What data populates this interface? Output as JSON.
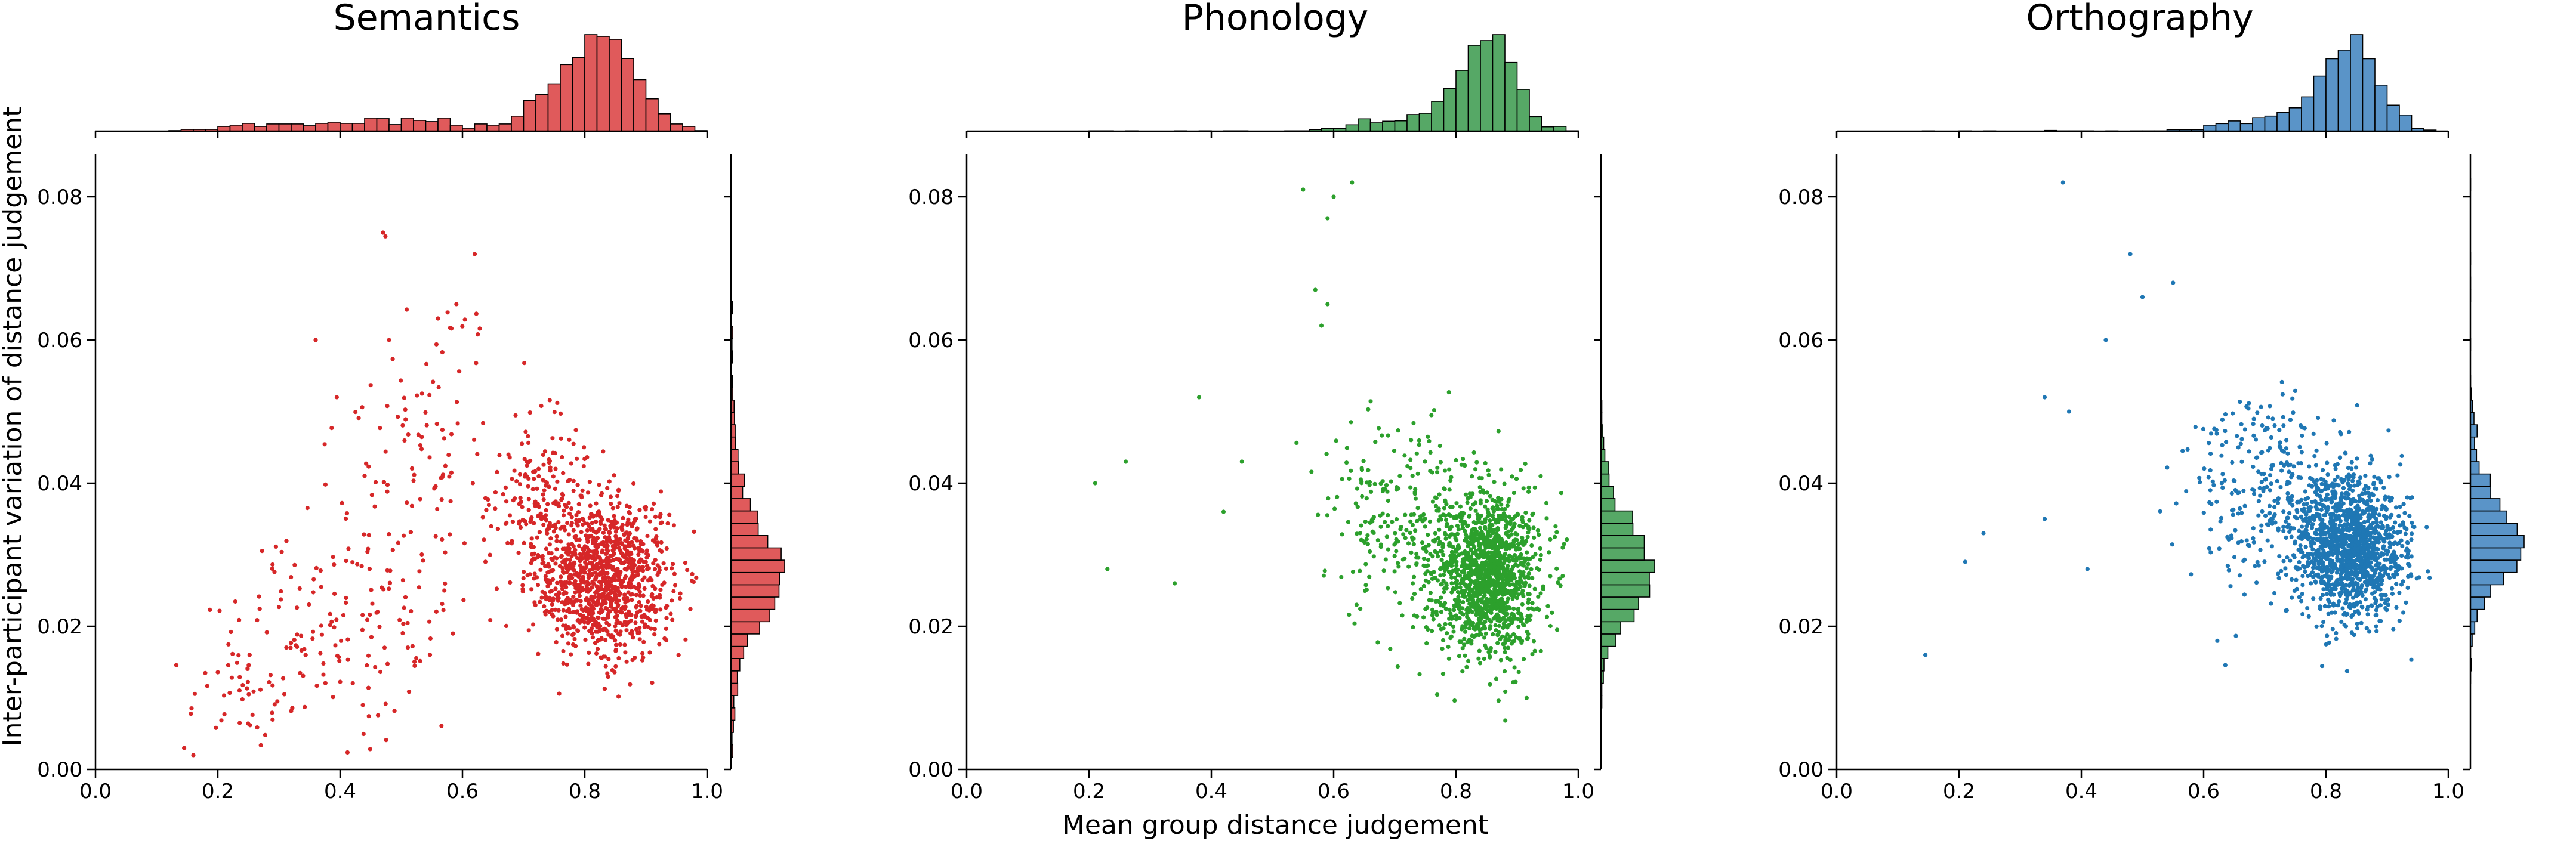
{
  "figure": {
    "ylabel": "Inter-participant variation of distance judgement",
    "xlabel": "Mean group distance judgement"
  },
  "chart_data": [
    {
      "type": "scatter",
      "title": "Semantics",
      "color": "#d62728",
      "hist_fill": "#e05a5b",
      "xlim": [
        0.0,
        1.0
      ],
      "ylim": [
        0.0,
        0.086
      ],
      "xticks": [
        0.0,
        0.2,
        0.4,
        0.6,
        0.8,
        1.0
      ],
      "yticks": [
        0.0,
        0.02,
        0.04,
        0.06,
        0.08
      ],
      "xtick_labels": [
        "0.0",
        "0.2",
        "0.4",
        "0.6",
        "0.8",
        "1.0"
      ],
      "ytick_labels": [
        "0.00",
        "0.02",
        "0.04",
        "0.06",
        "0.08"
      ],
      "marginal_top": true,
      "marginal_right": true,
      "clusters": [
        {
          "cx": 0.83,
          "cy": 0.027,
          "sx": 0.055,
          "sy": 0.0055,
          "n": 1100
        },
        {
          "cx": 0.73,
          "cy": 0.038,
          "sx": 0.04,
          "sy": 0.006,
          "n": 150
        },
        {
          "cx": 0.55,
          "cy": 0.045,
          "sx": 0.07,
          "sy": 0.009,
          "n": 110
        },
        {
          "cx": 0.4,
          "cy": 0.02,
          "sx": 0.1,
          "sy": 0.007,
          "n": 160
        },
        {
          "cx": 0.25,
          "cy": 0.01,
          "sx": 0.05,
          "sy": 0.004,
          "n": 40
        }
      ],
      "points": [
        [
          0.47,
          0.075
        ],
        [
          0.62,
          0.072
        ],
        [
          0.59,
          0.065
        ],
        [
          0.56,
          0.063
        ],
        [
          0.145,
          0.003
        ],
        [
          0.16,
          0.002
        ],
        [
          0.36,
          0.06
        ],
        [
          0.48,
          0.06
        ]
      ]
    },
    {
      "type": "scatter",
      "title": "Phonology",
      "color": "#2ca02c",
      "hist_fill": "#56a866",
      "xlim": [
        0.0,
        1.0
      ],
      "ylim": [
        0.0,
        0.086
      ],
      "xticks": [
        0.0,
        0.2,
        0.4,
        0.6,
        0.8,
        1.0
      ],
      "yticks": [
        0.0,
        0.02,
        0.04,
        0.06,
        0.08
      ],
      "xtick_labels": [
        "0.0",
        "0.2",
        "0.4",
        "0.6",
        "0.8",
        "1.0"
      ],
      "ytick_labels": [
        "0.00",
        "0.02",
        "0.04",
        "0.06",
        "0.08"
      ],
      "marginal_top": true,
      "marginal_right": true,
      "clusters": [
        {
          "cx": 0.85,
          "cy": 0.027,
          "sx": 0.045,
          "sy": 0.0055,
          "n": 1300
        },
        {
          "cx": 0.72,
          "cy": 0.035,
          "sx": 0.07,
          "sy": 0.007,
          "n": 280
        }
      ],
      "points": [
        [
          0.21,
          0.04
        ],
        [
          0.26,
          0.043
        ],
        [
          0.23,
          0.028
        ],
        [
          0.34,
          0.026
        ],
        [
          0.38,
          0.052
        ],
        [
          0.55,
          0.081
        ],
        [
          0.63,
          0.082
        ],
        [
          0.6,
          0.08
        ],
        [
          0.59,
          0.077
        ],
        [
          0.57,
          0.067
        ],
        [
          0.59,
          0.065
        ],
        [
          0.58,
          0.062
        ],
        [
          0.45,
          0.043
        ],
        [
          0.42,
          0.036
        ]
      ]
    },
    {
      "type": "scatter",
      "title": "Orthography",
      "color": "#1f77b4",
      "hist_fill": "#5a94c8",
      "xlim": [
        0.0,
        1.0
      ],
      "ylim": [
        0.0,
        0.086
      ],
      "xticks": [
        0.0,
        0.2,
        0.4,
        0.6,
        0.8,
        1.0
      ],
      "yticks": [
        0.0,
        0.02,
        0.04,
        0.06,
        0.08
      ],
      "xtick_labels": [
        "0.0",
        "0.2",
        "0.4",
        "0.6",
        "0.8",
        "1.0"
      ],
      "ytick_labels": [
        "0.00",
        "0.02",
        "0.04",
        "0.06",
        "0.08"
      ],
      "marginal_top": true,
      "marginal_right": true,
      "clusters": [
        {
          "cx": 0.84,
          "cy": 0.031,
          "sx": 0.045,
          "sy": 0.005,
          "n": 1300
        },
        {
          "cx": 0.72,
          "cy": 0.038,
          "sx": 0.07,
          "sy": 0.007,
          "n": 320
        }
      ],
      "points": [
        [
          0.145,
          0.016
        ],
        [
          0.21,
          0.029
        ],
        [
          0.24,
          0.033
        ],
        [
          0.34,
          0.035
        ],
        [
          0.37,
          0.082
        ],
        [
          0.48,
          0.072
        ],
        [
          0.5,
          0.066
        ],
        [
          0.34,
          0.052
        ],
        [
          0.41,
          0.028
        ],
        [
          0.44,
          0.06
        ],
        [
          0.55,
          0.068
        ],
        [
          0.38,
          0.05
        ]
      ]
    }
  ]
}
